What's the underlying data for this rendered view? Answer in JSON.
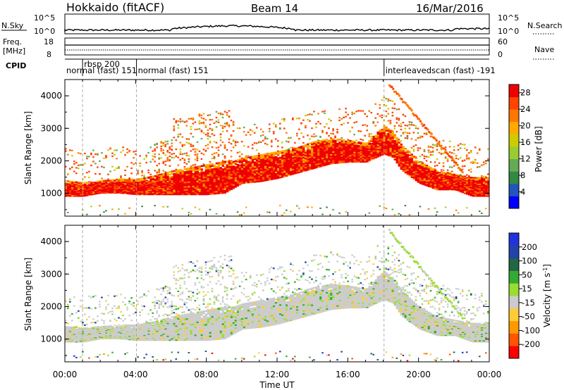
{
  "header": {
    "title": "Hokkaido (fitACF)",
    "beam": "Beam 14",
    "date": "16/Mar/2016"
  },
  "noise_panel": {
    "left_label": "N.Sky",
    "right_label": "N.Search",
    "ticks_left": [
      "10^5",
      "10^0"
    ],
    "ticks_right": [
      "10^5",
      "10^0"
    ]
  },
  "freq_panel": {
    "left_label_1": "Freq.",
    "left_label_2": "[MHz]",
    "right_label": "Nave",
    "ticks_left": [
      "18",
      "8"
    ],
    "ticks_right": [
      "60",
      "0"
    ]
  },
  "cpid_panel": {
    "label": "CPID",
    "segments": [
      {
        "start_h": 0.0,
        "label": "normal (fast) 151"
      },
      {
        "start_h": 1.0,
        "label": "rbsp 200"
      },
      {
        "start_h": 4.05,
        "label": "normal (fast) 151"
      },
      {
        "start_h": 18.05,
        "label": "interleavedscan (fast) -191"
      }
    ]
  },
  "colors": {
    "power_scale": [
      "#0000ff",
      "#2255bb",
      "#338844",
      "#66aa55",
      "#99cc33",
      "#cccc00",
      "#ffaa00",
      "#ff7700",
      "#ff4400",
      "#ee0000"
    ],
    "velocity_scale": [
      "#ff0000",
      "#ff5500",
      "#ff9900",
      "#ffcc33",
      "#cccccc",
      "#99dd33",
      "#33aa33",
      "#226644",
      "#2244aa",
      "#2233dd"
    ]
  },
  "chart_data": [
    {
      "type": "heatmap",
      "name_hint": "power",
      "ylabel": "Slant Range [km]",
      "xlabel": "Time UT",
      "xlim": [
        0,
        24
      ],
      "ylim": [
        300,
        4500
      ],
      "yticks": [
        "1000",
        "2000",
        "3000",
        "4000"
      ],
      "xticks": [
        "00:00",
        "04:00",
        "08:00",
        "12:00",
        "16:00",
        "20:00",
        "00:00"
      ],
      "colorbar_label": "Power [dB]",
      "colorbar_ticks": [
        "4",
        "8",
        "12",
        "16",
        "20",
        "24",
        "28"
      ],
      "colorbar_range": [
        0,
        30
      ],
      "bands": [
        {
          "t": [
            0,
            1,
            2,
            3,
            4,
            5,
            6,
            7,
            8,
            9,
            9.5,
            10,
            11,
            12,
            13,
            14,
            15,
            16,
            17,
            18,
            18.5,
            19,
            20,
            21,
            22,
            23,
            24
          ],
          "low": [
            900,
            900,
            1000,
            1000,
            950,
            950,
            950,
            950,
            950,
            1000,
            1150,
            1300,
            1350,
            1450,
            1600,
            1750,
            1900,
            1950,
            1950,
            2200,
            2100,
            1700,
            1300,
            1100,
            1100,
            900,
            900
          ],
          "high": [
            1400,
            1350,
            1400,
            1450,
            1450,
            1550,
            1700,
            1800,
            1900,
            2000,
            2000,
            2100,
            2200,
            2300,
            2400,
            2600,
            2700,
            2650,
            2550,
            3100,
            2900,
            2500,
            2000,
            1700,
            1600,
            1500,
            1500
          ],
          "power": 26
        }
      ]
    },
    {
      "type": "heatmap",
      "name_hint": "velocity",
      "ylabel": "Slant Range [km]",
      "xlabel": "Time UT",
      "xlim": [
        0,
        24
      ],
      "ylim": [
        300,
        4500
      ],
      "yticks": [
        "1000",
        "2000",
        "3000",
        "4000"
      ],
      "xticks": [
        "00:00",
        "04:00",
        "08:00",
        "12:00",
        "16:00",
        "20:00",
        "00:00"
      ],
      "colorbar_label": "Velocity [m s^-1]",
      "colorbar_ticks": [
        "200",
        "100",
        "50",
        "15",
        "-15",
        "-50",
        "-100",
        "-200"
      ],
      "colorbar_range": [
        -250,
        250
      ],
      "bands": [
        {
          "t": [
            0,
            1,
            2,
            3,
            4,
            5,
            6,
            7,
            8,
            9,
            9.5,
            10,
            11,
            12,
            13,
            14,
            15,
            16,
            17,
            18,
            18.5,
            19,
            20,
            21,
            22,
            23,
            24
          ],
          "low": [
            900,
            900,
            1000,
            1000,
            950,
            950,
            950,
            950,
            950,
            1000,
            1150,
            1300,
            1350,
            1450,
            1600,
            1750,
            1900,
            1950,
            1950,
            2200,
            2100,
            1700,
            1300,
            1100,
            1100,
            900,
            900
          ],
          "high": [
            1400,
            1350,
            1400,
            1450,
            1450,
            1550,
            1700,
            1800,
            1900,
            2000,
            2000,
            2100,
            2200,
            2300,
            2400,
            2600,
            2700,
            2650,
            2550,
            3100,
            2900,
            2500,
            2000,
            1700,
            1600,
            1500,
            1500
          ],
          "velocity": 0
        }
      ]
    }
  ]
}
